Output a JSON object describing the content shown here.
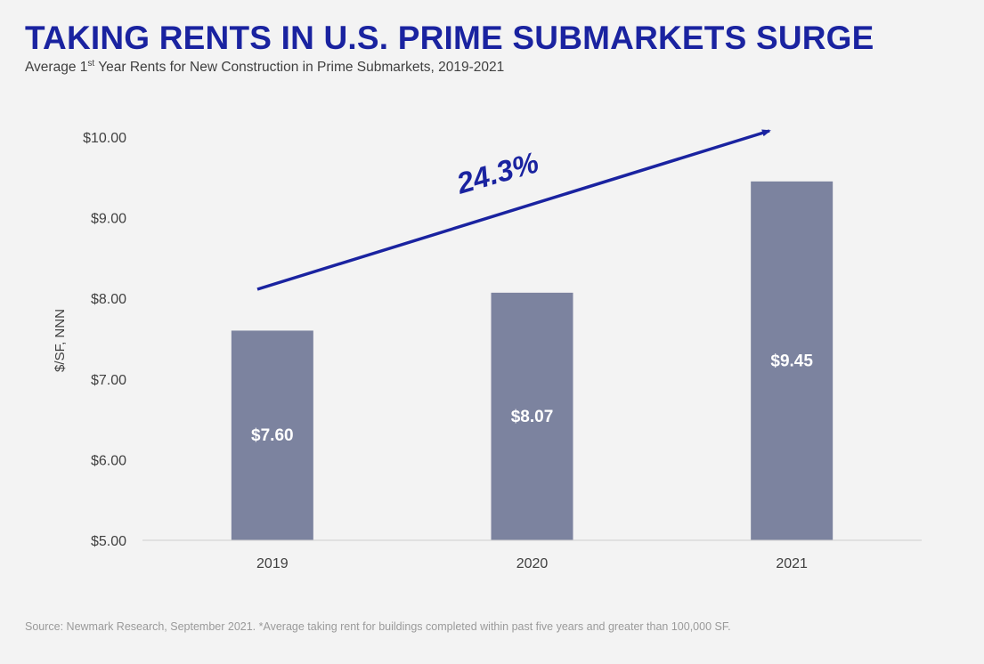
{
  "header": {
    "title": "TAKING RENTS IN U.S. PRIME SUBMARKETS SURGE",
    "subtitle_prefix": "Average 1",
    "subtitle_sup": "st",
    "subtitle_suffix": " Year Rents for New Construction in Prime Submarkets, 2019-2021"
  },
  "footer": {
    "source": "Source: Newmark Research, September 2021. *Average taking rent for buildings completed within past five years and greater than 100,000 SF."
  },
  "chart_data": {
    "type": "bar",
    "title": "TAKING RENTS IN U.S. PRIME SUBMARKETS SURGE",
    "subtitle": "Average 1st Year Rents for New Construction in Prime Submarkets, 2019-2021",
    "categories": [
      "2019",
      "2020",
      "2021"
    ],
    "values": [
      7.6,
      8.07,
      9.45
    ],
    "data_labels": [
      "$7.60",
      "$8.07",
      "$9.45"
    ],
    "xlabel": "",
    "ylabel": "$/SF, NNN",
    "ylim": [
      5,
      10
    ],
    "yticks": [
      5,
      6,
      7,
      8,
      9,
      10
    ],
    "ytick_labels": [
      "$5.00",
      "$6.00",
      "$7.00",
      "$8.00",
      "$9.00",
      "$10.00"
    ],
    "grid": false,
    "legend": "none",
    "annotation": "24.3%",
    "colors": {
      "bar": "#7c839f",
      "accent": "#1a23a0",
      "axis": "#cfcfcf",
      "text": "#404040"
    }
  }
}
